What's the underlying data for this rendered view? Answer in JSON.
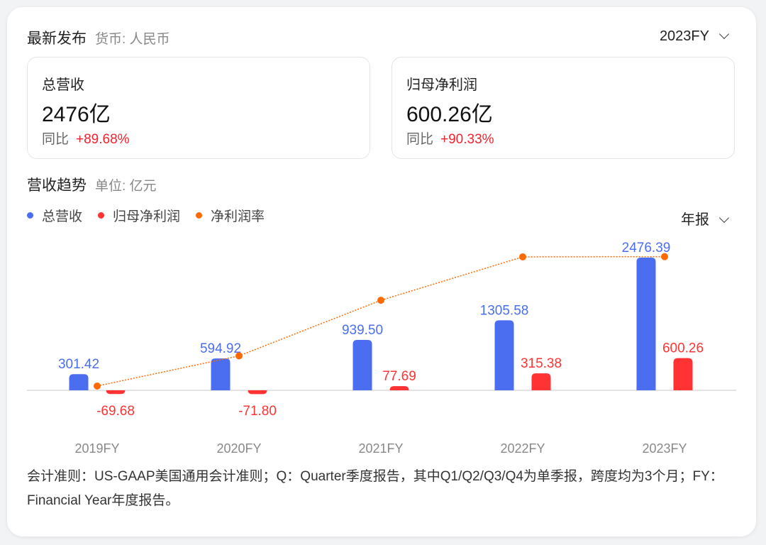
{
  "header": {
    "title": "最新发布",
    "currency": "货币: 人民币",
    "period_select": "2023FY"
  },
  "kpis": [
    {
      "label": "总营收",
      "value": "2476亿",
      "yoy_label": "同比",
      "yoy": "+89.68%"
    },
    {
      "label": "归母净利润",
      "value": "600.26亿",
      "yoy_label": "同比",
      "yoy": "+90.33%"
    }
  ],
  "trend": {
    "title": "营收趋势",
    "unit": "单位: 亿元",
    "report_select": "年报"
  },
  "colors": {
    "revenue": "#4b6ef0",
    "net_profit": "#ff3333",
    "net_margin": "#ff6a00",
    "up": "#f5222d"
  },
  "chart_data": {
    "type": "bar",
    "categories": [
      "2019FY",
      "2020FY",
      "2021FY",
      "2022FY",
      "2023FY"
    ],
    "series": [
      {
        "name": "总营收",
        "type": "bar",
        "values": [
          301.42,
          594.92,
          939.5,
          1305.58,
          2476.39
        ],
        "labels": [
          "301.42",
          "594.92",
          "939.50",
          "1305.58",
          "2476.39"
        ]
      },
      {
        "name": "归母净利润",
        "type": "bar",
        "values": [
          -69.68,
          -71.8,
          77.69,
          315.38,
          600.26
        ],
        "labels": [
          "-69.68",
          "-71.80",
          "77.69",
          "315.38",
          "600.26"
        ]
      },
      {
        "name": "净利润率",
        "type": "line",
        "unit": "%",
        "values": [
          -23.12,
          -12.07,
          8.27,
          24.16,
          24.24
        ]
      }
    ],
    "legend_position": "top-left",
    "grid": false
  },
  "footnote": "会计准则：US-GAAP美国通用会计准则；Q：Quarter季度报告，其中Q1/Q2/Q3/Q4为单季报，跨度均为3个月；FY：Financial Year年度报告。"
}
